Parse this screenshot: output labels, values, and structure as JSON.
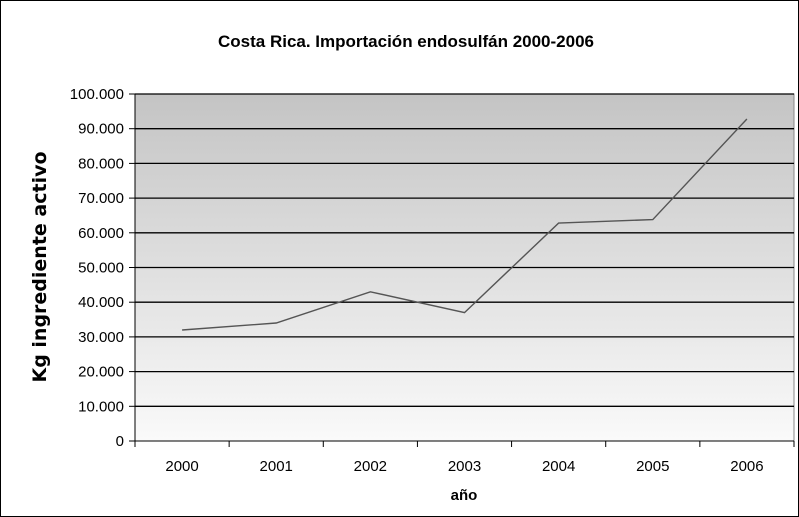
{
  "chart_data": {
    "type": "line",
    "title": "Costa Rica. Importación endosulfán 2000-2006",
    "xlabel": "año",
    "ylabel": "Kg ingrediente activo",
    "categories": [
      "2000",
      "2001",
      "2002",
      "2003",
      "2004",
      "2005",
      "2006"
    ],
    "series": [
      {
        "values": [
          32000,
          34000,
          43000,
          37000,
          62800,
          63800,
          92800
        ]
      }
    ],
    "ylim": [
      0,
      100000
    ],
    "yticks": [
      0,
      10000,
      20000,
      30000,
      40000,
      50000,
      60000,
      70000,
      80000,
      90000,
      100000
    ],
    "ytick_labels": [
      "0",
      "10.000",
      "20.000",
      "30.000",
      "40.000",
      "50.000",
      "60.000",
      "70.000",
      "80.000",
      "90.000",
      "100.000"
    ],
    "grid": true,
    "legend": "none",
    "colors": {
      "line": "#555555",
      "plot_bg_top": "#c4c4c4",
      "plot_bg_bottom": "#fafafa",
      "gridline": "#000000"
    }
  }
}
